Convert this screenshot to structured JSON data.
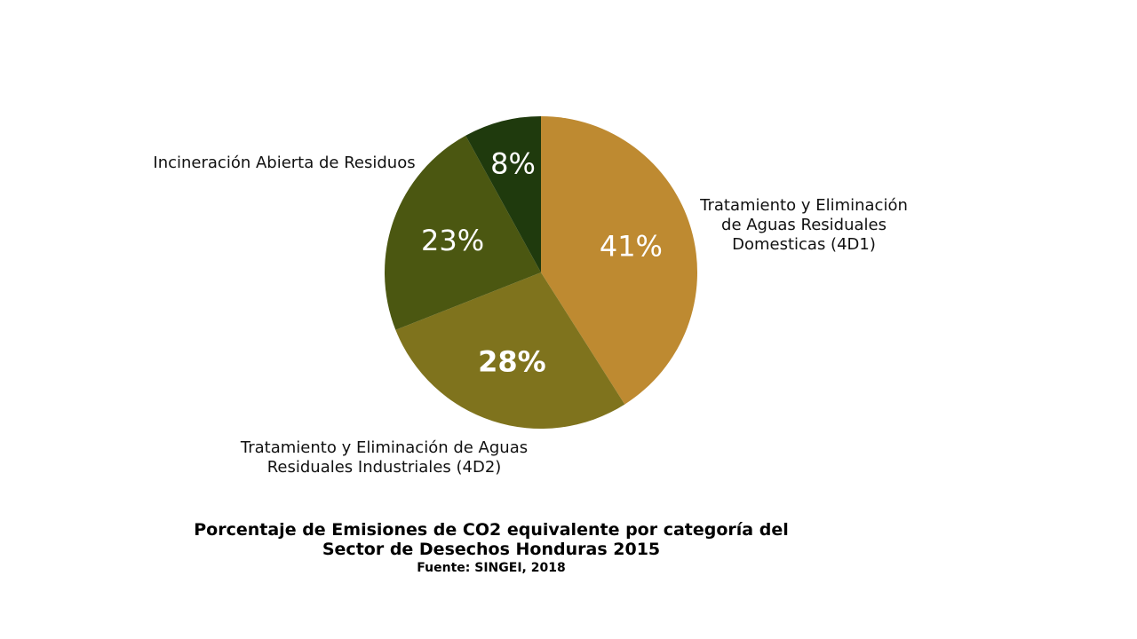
{
  "chart_data": {
    "type": "pie",
    "title": "Porcentaje de Emisiones de CO2 equivalente por categoría del Sector de Desechos Honduras 2015",
    "source": "Fuente: SINGEI, 2018",
    "slices": [
      {
        "label": "Tratamiento y Eliminación\nde Aguas Residuales\nDomesticas  (4D1)",
        "value": 41,
        "value_label": "41%",
        "color": "#be8a31"
      },
      {
        "label": "Tratamiento y Eliminación de Aguas\nResiduales Industriales (4D2)",
        "value": 28,
        "value_label": "28%",
        "color": "#7f731d"
      },
      {
        "label": "",
        "value": 23,
        "value_label": "23%",
        "color": "#4b5711"
      },
      {
        "label": "Incineración Abierta de Residuos",
        "value": 8,
        "value_label": "8%",
        "color": "#1f3a0d"
      }
    ]
  }
}
